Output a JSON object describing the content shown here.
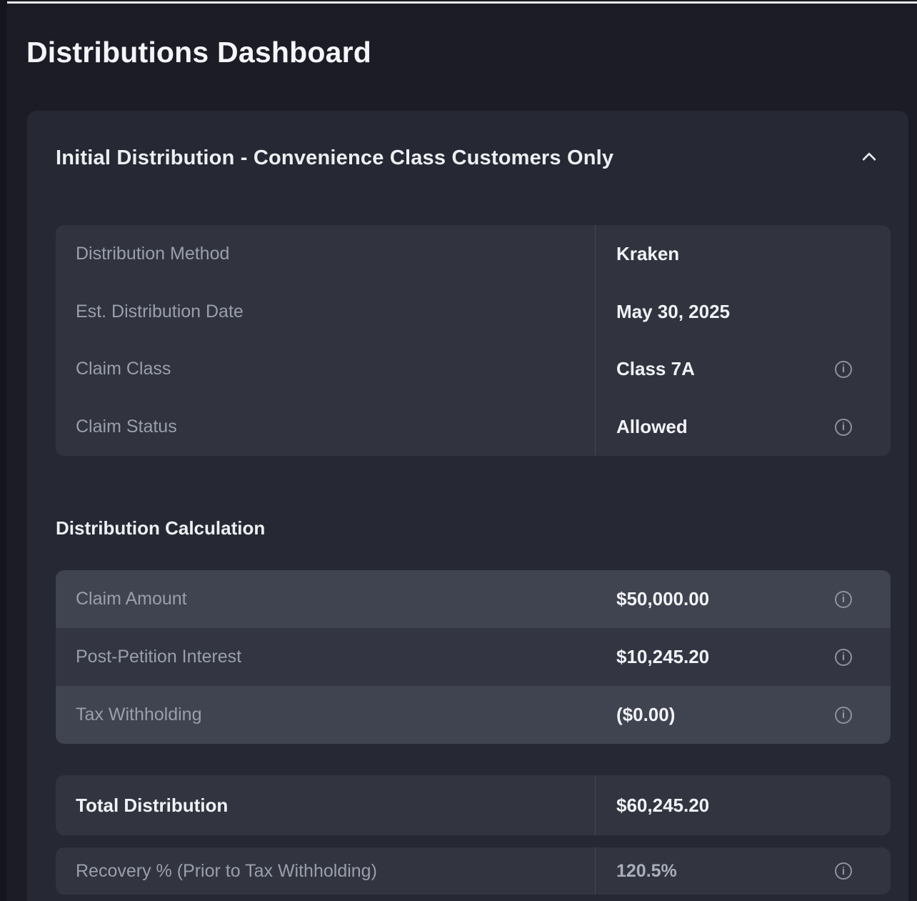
{
  "page": {
    "title": "Distributions Dashboard"
  },
  "panel": {
    "header": "Initial Distribution - Convenience Class Customers Only",
    "collapse_icon": "chevron-up",
    "details": {
      "rows": [
        {
          "label": "Distribution Method",
          "value": "Kraken",
          "has_info": false
        },
        {
          "label": "Est. Distribution Date",
          "value": "May 30, 2025",
          "has_info": false
        },
        {
          "label": "Claim Class",
          "value": "Class 7A",
          "has_info": true
        },
        {
          "label": "Claim Status",
          "value": "Allowed",
          "has_info": true
        }
      ]
    },
    "calc": {
      "heading": "Distribution Calculation",
      "rows": [
        {
          "label": "Claim Amount",
          "value": "$50,000.00",
          "has_info": true
        },
        {
          "label": "Post-Petition Interest",
          "value": "$10,245.20",
          "has_info": true
        },
        {
          "label": "Tax Withholding",
          "value": "($0.00)",
          "has_info": true
        }
      ],
      "total": {
        "label": "Total Distribution",
        "value": "$60,245.20"
      },
      "recovery": {
        "label": "Recovery % (Prior to Tax Withholding)",
        "value": "120.5%",
        "has_info": true
      }
    }
  },
  "colors": {
    "page_bg": "#1b1c26",
    "card_bg": "#262834",
    "table_bg": "#31333f",
    "stripe_light": "#404350",
    "stripe_dark": "#333542",
    "summary_bg": "#323440",
    "label_text": "#999fac",
    "value_text": "#f1f3f6",
    "icon_gray": "#8e93a1"
  }
}
